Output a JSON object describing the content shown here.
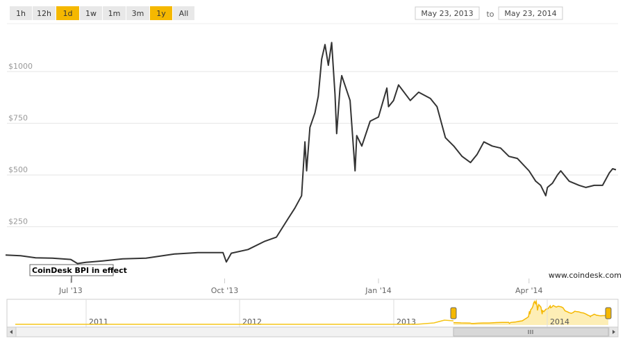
{
  "range_buttons": [
    {
      "label": "1h",
      "selected": false
    },
    {
      "label": "12h",
      "selected": false
    },
    {
      "label": "1d",
      "selected": true
    },
    {
      "label": "1w",
      "selected": false
    },
    {
      "label": "1m",
      "selected": false
    },
    {
      "label": "3m",
      "selected": false
    },
    {
      "label": "1y",
      "selected": true
    },
    {
      "label": "All",
      "selected": false
    }
  ],
  "date_from": "May 23, 2013",
  "to_label": "to",
  "date_to": "May 23, 2014",
  "chart_data": {
    "type": "line",
    "color": "#333333",
    "grid": true,
    "annotation": "CoinDesk BPI in effect",
    "credit": "www.coindesk.com",
    "x": [
      "2013-05-23",
      "2013-06-01",
      "2013-06-10",
      "2013-06-20",
      "2013-07-01",
      "2013-07-05",
      "2013-07-10",
      "2013-07-20",
      "2013-08-01",
      "2013-08-15",
      "2013-09-01",
      "2013-09-15",
      "2013-09-30",
      "2013-10-02",
      "2013-10-05",
      "2013-10-15",
      "2013-10-25",
      "2013-11-01",
      "2013-11-08",
      "2013-11-12",
      "2013-11-16",
      "2013-11-18",
      "2013-11-19",
      "2013-11-21",
      "2013-11-24",
      "2013-11-26",
      "2013-11-28",
      "2013-11-30",
      "2013-12-02",
      "2013-12-04",
      "2013-12-06",
      "2013-12-07",
      "2013-12-09",
      "2013-12-10",
      "2013-12-15",
      "2013-12-18",
      "2013-12-19",
      "2013-12-22",
      "2013-12-27",
      "2014-01-01",
      "2014-01-06",
      "2014-01-07",
      "2014-01-10",
      "2014-01-13",
      "2014-01-20",
      "2014-01-25",
      "2014-02-01",
      "2014-02-05",
      "2014-02-10",
      "2014-02-15",
      "2014-02-20",
      "2014-02-25",
      "2014-03-01",
      "2014-03-05",
      "2014-03-10",
      "2014-03-15",
      "2014-03-20",
      "2014-03-25",
      "2014-04-01",
      "2014-04-05",
      "2014-04-08",
      "2014-04-11",
      "2014-04-12",
      "2014-04-15",
      "2014-04-18",
      "2014-04-20",
      "2014-04-25",
      "2014-05-01",
      "2014-05-05",
      "2014-05-10",
      "2014-05-15",
      "2014-05-19",
      "2014-05-21",
      "2014-05-23"
    ],
    "values": [
      113,
      110,
      100,
      98,
      92,
      72,
      78,
      85,
      95,
      98,
      118,
      125,
      125,
      80,
      122,
      140,
      180,
      200,
      290,
      340,
      400,
      660,
      520,
      730,
      800,
      880,
      1060,
      1130,
      1030,
      1140,
      890,
      700,
      920,
      980,
      860,
      520,
      690,
      640,
      760,
      780,
      920,
      830,
      860,
      935,
      860,
      900,
      870,
      830,
      680,
      640,
      590,
      560,
      600,
      660,
      640,
      630,
      590,
      580,
      520,
      470,
      450,
      400,
      440,
      460,
      500,
      520,
      470,
      450,
      440,
      450,
      450,
      510,
      530,
      525
    ],
    "xlim": [
      "2013-05-23",
      "2014-05-23"
    ],
    "xticks": [
      {
        "value": "2013-07-01",
        "label": "Jul '13"
      },
      {
        "value": "2013-10-01",
        "label": "Oct '13"
      },
      {
        "value": "2014-01-01",
        "label": "Jan '14"
      },
      {
        "value": "2014-04-01",
        "label": "Apr '14"
      }
    ],
    "ylim": [
      0,
      1228
    ],
    "yticks": [
      {
        "value": 250,
        "label": "$250"
      },
      {
        "value": 500,
        "label": "$500"
      },
      {
        "value": 750,
        "label": "$750"
      },
      {
        "value": 1000,
        "label": "$1000"
      }
    ],
    "navigator_labels": [
      "2011",
      "2012",
      "2013",
      "2014"
    ]
  }
}
